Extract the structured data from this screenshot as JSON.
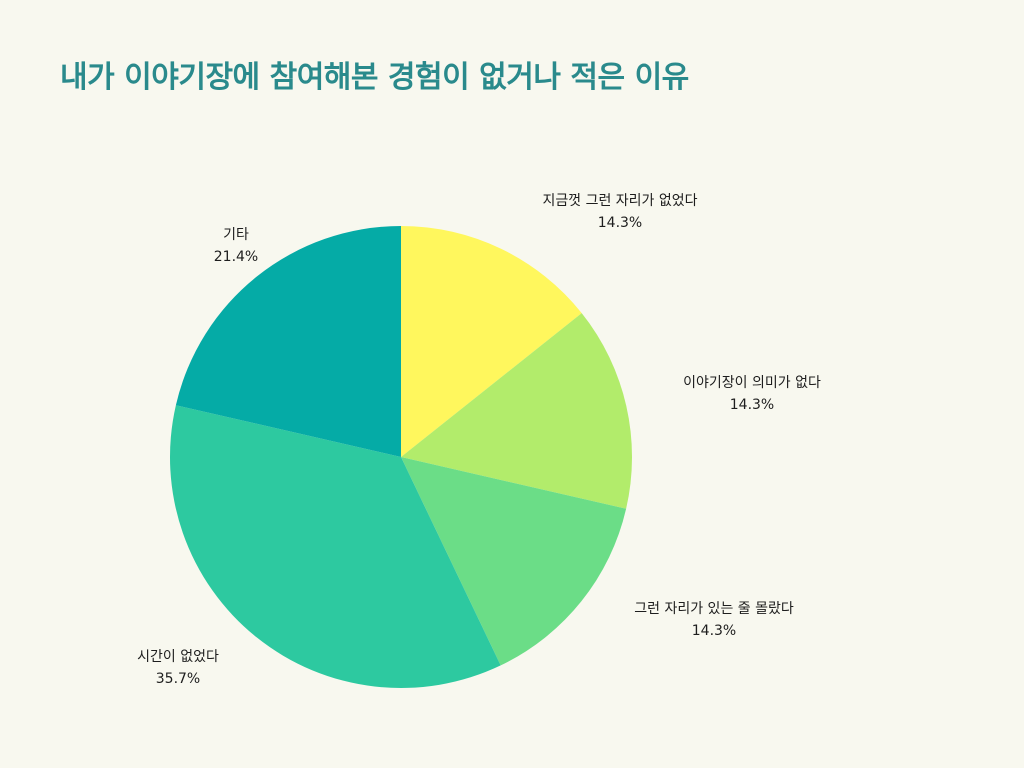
{
  "title": "내가 이야기장에 참여해본 경험이 없거나 적은 이유",
  "chart_data": {
    "type": "pie",
    "title": "내가 이야기장에 참여해본 경험이 없거나 적은 이유",
    "start_angle_deg": 0,
    "direction": "clockwise",
    "slices": [
      {
        "label": "지금껏 그런 자리가 없었다",
        "value": 14.3,
        "display": "14.3%",
        "color": "#fff75d"
      },
      {
        "label": "이야기장이 의미가 없다",
        "value": 14.3,
        "display": "14.3%",
        "color": "#b2ec6b"
      },
      {
        "label": "그런 자리가 있는 줄 몰랐다",
        "value": 14.3,
        "display": "14.3%",
        "color": "#6bdd87"
      },
      {
        "label": "시간이 없었다",
        "value": 35.7,
        "display": "35.7%",
        "color": "#2dc9a0"
      },
      {
        "label": "기타",
        "value": 21.4,
        "display": "21.4%",
        "color": "#05aba6"
      }
    ]
  }
}
